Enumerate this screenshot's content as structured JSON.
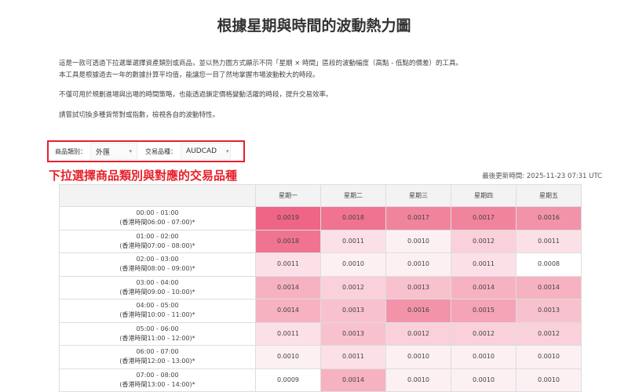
{
  "title": "根據星期與時間的波動熱力圖",
  "intro": [
    "這是一款可透過下拉選單選擇資產類別或商品，並以熱力圖方式顯示不同「星期 × 時間」區段的波動幅度（高點 - 低點的價差）的工具。",
    "本工具是根據過去一年的數據計算平均值，能讓您一目了然地掌握市場波動較大的時段。",
    "不僅可用於規劃進場與出場的時間策略，也能透過鎖定價格變動活躍的時段，提升交易效率。",
    "請嘗試切換多種貨幣對或指數，檢視各自的波動特性。"
  ],
  "filters": {
    "category_label": "商品類別：",
    "category_value": "外匯",
    "symbol_label": "交易品種：",
    "symbol_value": "AUDCAD"
  },
  "caption": "下拉選擇商品類別與對應的交易品種",
  "updated": "最後更新時間: 2025-11-23 07:31 UTC",
  "colors": {
    "high": "#ee6585",
    "low": "#ffffff",
    "annotation": "#e8202a"
  },
  "table": {
    "days": [
      "星期一",
      "星期二",
      "星期三",
      "星期四",
      "星期五"
    ],
    "rows": [
      {
        "time": "00:00 - 01:00",
        "hk": "(香港時間06:00 - 07:00)*",
        "values": [
          "0.0019",
          "0.0018",
          "0.0017",
          "0.0017",
          "0.0016"
        ]
      },
      {
        "time": "01:00 - 02:00",
        "hk": "(香港時間07:00 - 08:00)*",
        "values": [
          "0.0018",
          "0.0011",
          "0.0010",
          "0.0012",
          "0.0011"
        ]
      },
      {
        "time": "02:00 - 03:00",
        "hk": "(香港時間08:00 - 09:00)*",
        "values": [
          "0.0011",
          "0.0010",
          "0.0010",
          "0.0011",
          "0.0008"
        ]
      },
      {
        "time": "03:00 - 04:00",
        "hk": "(香港時間09:00 - 10:00)*",
        "values": [
          "0.0014",
          "0.0012",
          "0.0013",
          "0.0014",
          "0.0014"
        ]
      },
      {
        "time": "04:00 - 05:00",
        "hk": "(香港時間10:00 - 11:00)*",
        "values": [
          "0.0014",
          "0.0013",
          "0.0016",
          "0.0015",
          "0.0013"
        ]
      },
      {
        "time": "05:00 - 06:00",
        "hk": "(香港時間11:00 - 12:00)*",
        "values": [
          "0.0011",
          "0.0013",
          "0.0012",
          "0.0012",
          "0.0012"
        ]
      },
      {
        "time": "06:00 - 07:00",
        "hk": "(香港時間12:00 - 13:00)*",
        "values": [
          "0.0010",
          "0.0011",
          "0.0010",
          "0.0010",
          "0.0010"
        ]
      },
      {
        "time": "07:00 - 08:00",
        "hk": "(香港時間13:00 - 14:00)*",
        "values": [
          "0.0009",
          "0.0014",
          "0.0010",
          "0.0010",
          "0.0010"
        ]
      }
    ]
  }
}
